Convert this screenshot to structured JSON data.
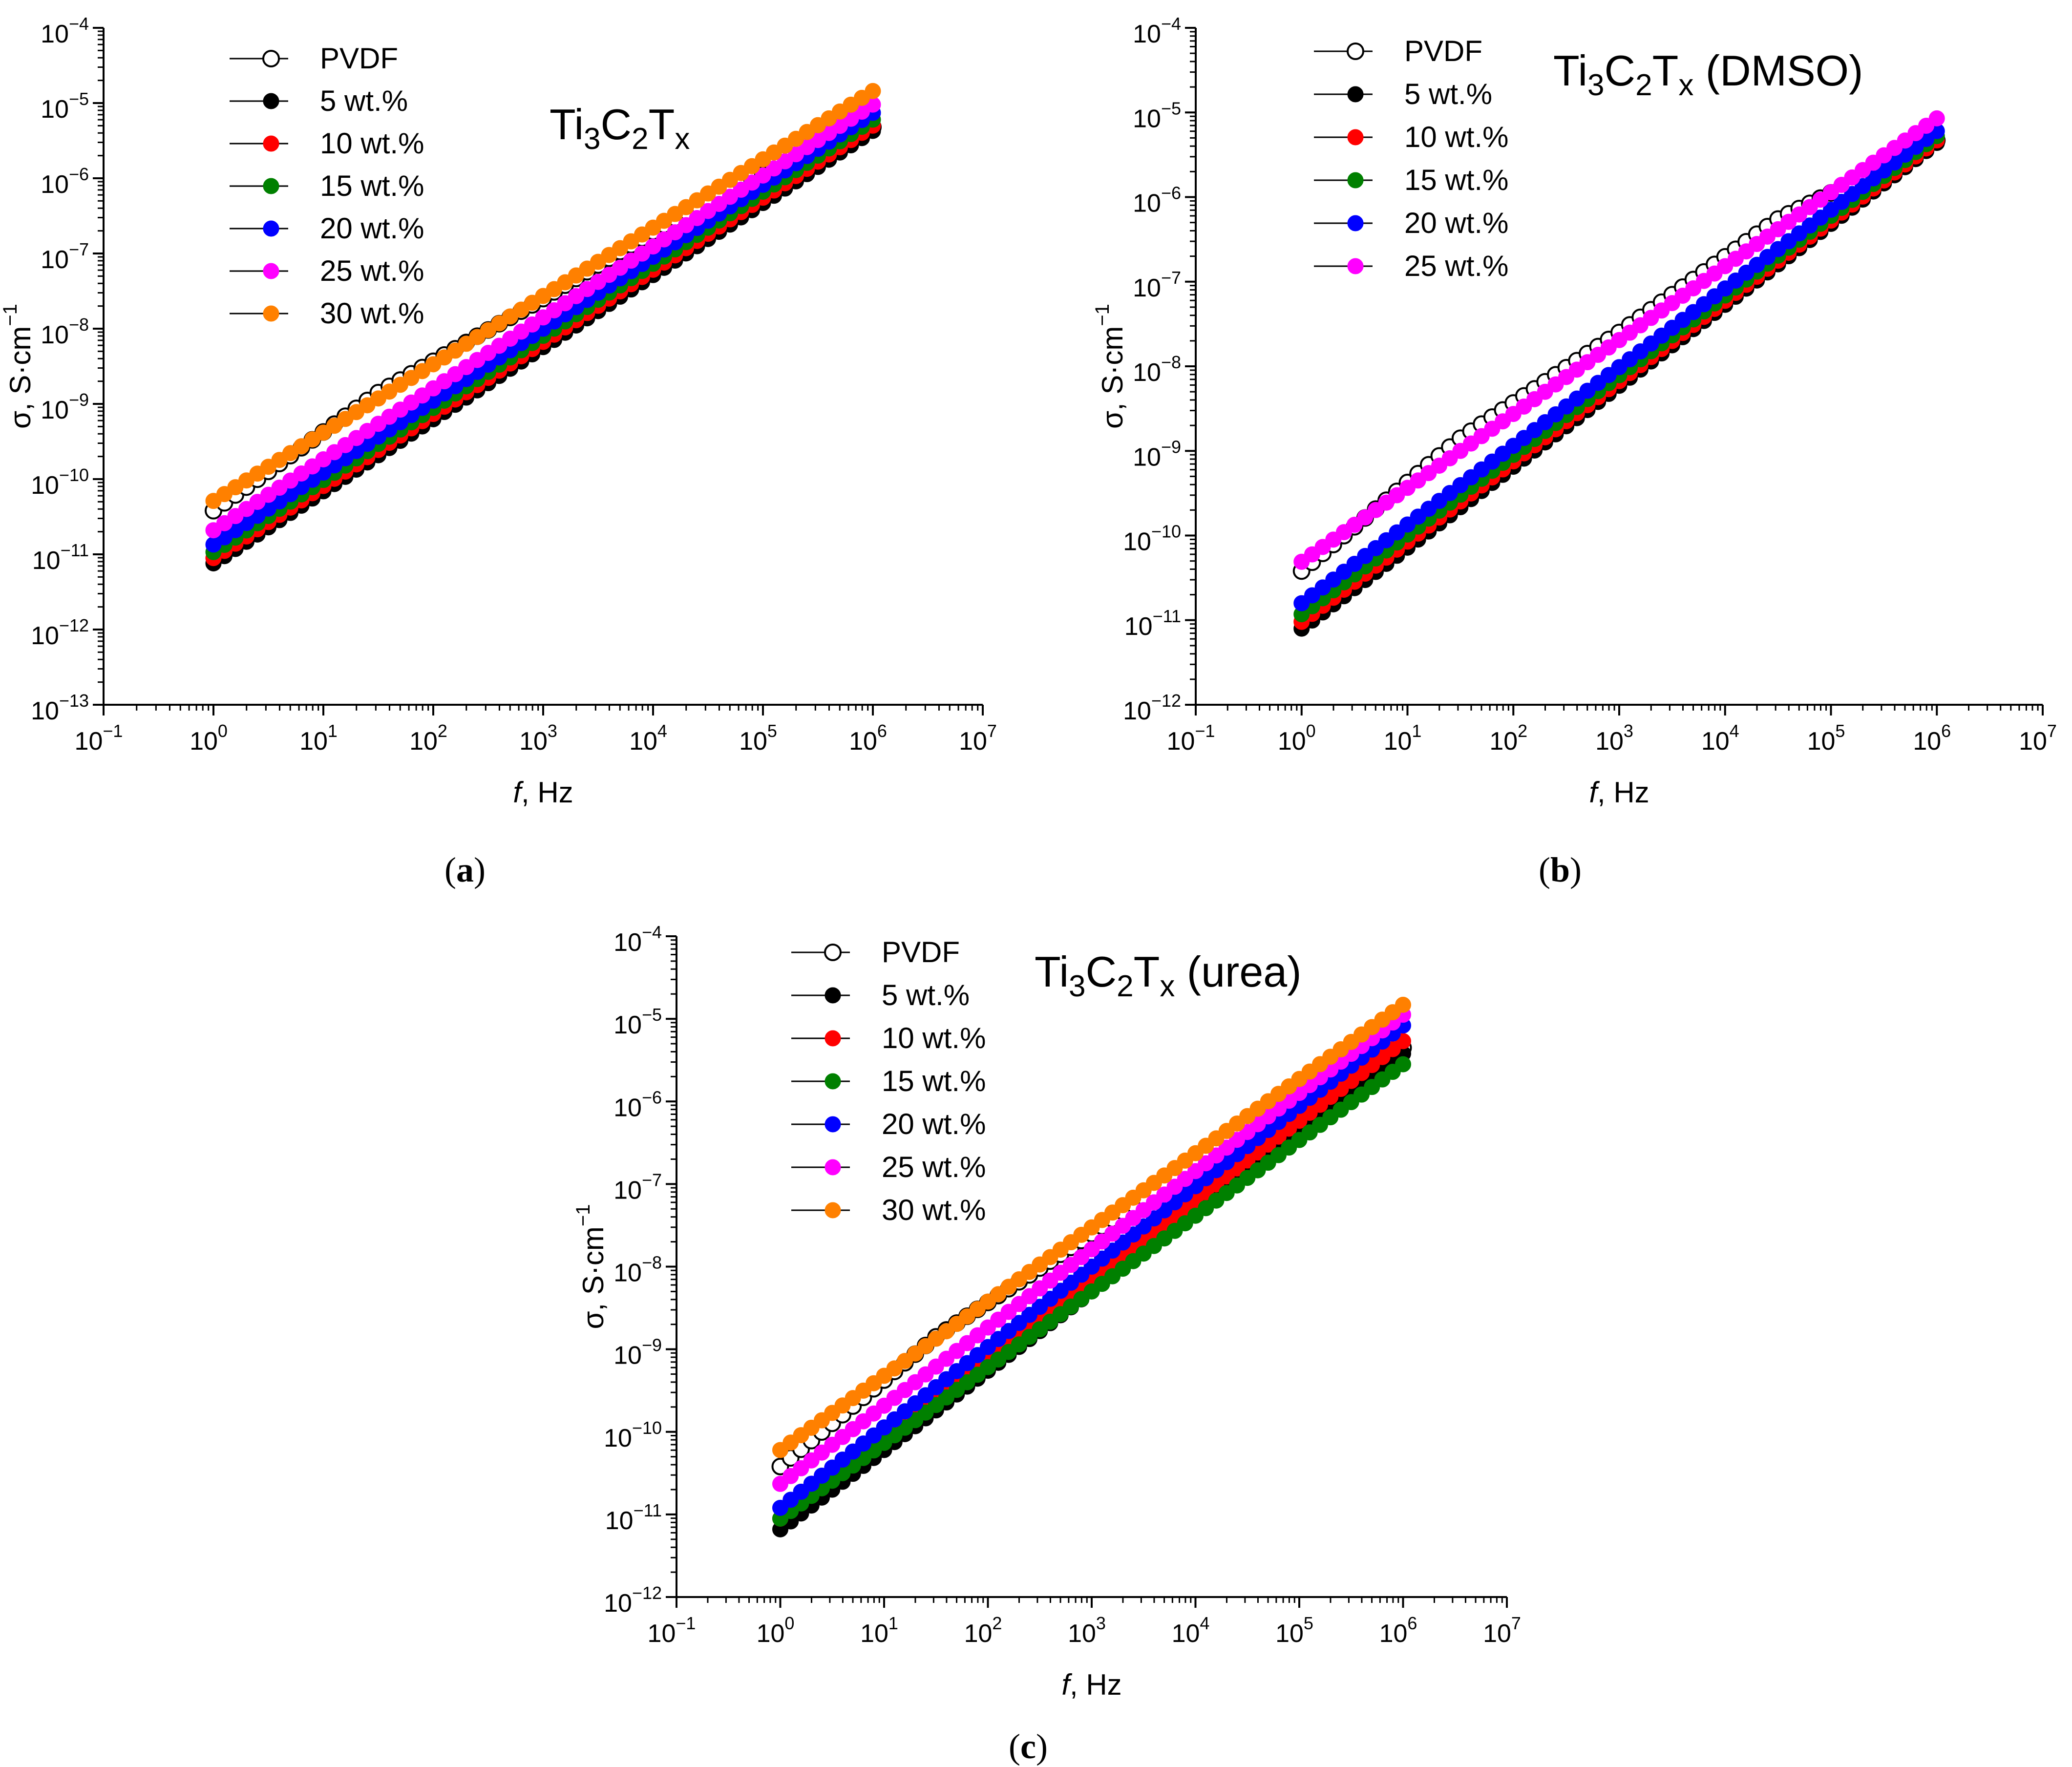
{
  "figure": {
    "panels": [
      "(a)",
      "(b)",
      "(c)"
    ]
  },
  "chart_data": [
    {
      "type": "scatter",
      "panel_label": "a",
      "title": {
        "base": "Ti",
        "s1": "3",
        "mid": "C",
        "s2": "2",
        "t": "T",
        "s3": "x",
        "suffix": ""
      },
      "xlabel": {
        "italic": "f",
        "rest": ", Hz"
      },
      "ylabel": {
        "main": "σ, S·cm",
        "sup": "−1"
      },
      "xscale": "log",
      "yscale": "log",
      "xlim_exp": [
        -1,
        7
      ],
      "ylim_exp": [
        -13,
        -4
      ],
      "x_tick_labels": [
        {
          "b": "10",
          "e": "−1"
        },
        {
          "b": "10",
          "e": "0"
        },
        {
          "b": "10",
          "e": "1"
        },
        {
          "b": "10",
          "e": "2"
        },
        {
          "b": "10",
          "e": "3"
        },
        {
          "b": "10",
          "e": "4"
        },
        {
          "b": "10",
          "e": "5"
        },
        {
          "b": "10",
          "e": "6"
        },
        {
          "b": "10",
          "e": "7"
        }
      ],
      "y_tick_labels": [
        {
          "b": "10",
          "e": "−13"
        },
        {
          "b": "10",
          "e": "−12"
        },
        {
          "b": "10",
          "e": "−11"
        },
        {
          "b": "10",
          "e": "−10"
        },
        {
          "b": "10",
          "e": "−9"
        },
        {
          "b": "10",
          "e": "−8"
        },
        {
          "b": "10",
          "e": "−7"
        },
        {
          "b": "10",
          "e": "−6"
        },
        {
          "b": "10",
          "e": "−5"
        },
        {
          "b": "10",
          "e": "−4"
        }
      ],
      "legend_position": "top-left",
      "points_per_decade": 10,
      "f_range_exp": [
        0,
        6
      ],
      "series": [
        {
          "name": "PVDF",
          "color": "#000000",
          "hollow": true,
          "log_sigma": [
            -10.42,
            -8.85,
            -7.6,
            -6.26,
            -5.32
          ]
        },
        {
          "name": "5 wt.%",
          "color": "#000000",
          "hollow": false,
          "log_sigma": [
            -11.12,
            -5.37
          ]
        },
        {
          "name": "10 wt.%",
          "color": "#ff0000",
          "hollow": false,
          "log_sigma": [
            -11.05,
            -5.3
          ]
        },
        {
          "name": "15 wt.%",
          "color": "#008000",
          "hollow": false,
          "log_sigma": [
            -10.97,
            -5.22
          ]
        },
        {
          "name": "20 wt.%",
          "color": "#0000ff",
          "hollow": false,
          "log_sigma": [
            -10.87,
            -5.13
          ]
        },
        {
          "name": "25 wt.%",
          "color": "#ff00ff",
          "hollow": false,
          "log_sigma": [
            -10.68,
            -5.02
          ]
        },
        {
          "name": "30 wt.%",
          "color": "#ff8000",
          "hollow": false,
          "log_sigma": [
            -10.29,
            -4.84
          ]
        }
      ]
    },
    {
      "type": "scatter",
      "panel_label": "b",
      "title": {
        "base": "Ti",
        "s1": "3",
        "mid": "C",
        "s2": "2",
        "t": "T",
        "s3": "x",
        "suffix": " (DMSO)"
      },
      "xlabel": {
        "italic": "f",
        "rest": ", Hz"
      },
      "ylabel": {
        "main": "σ, S·cm",
        "sup": "−1"
      },
      "xscale": "log",
      "yscale": "log",
      "xlim_exp": [
        -1,
        7
      ],
      "ylim_exp": [
        -12,
        -4
      ],
      "x_tick_labels": [
        {
          "b": "10",
          "e": "−1"
        },
        {
          "b": "10",
          "e": "0"
        },
        {
          "b": "10",
          "e": "1"
        },
        {
          "b": "10",
          "e": "2"
        },
        {
          "b": "10",
          "e": "3"
        },
        {
          "b": "10",
          "e": "4"
        },
        {
          "b": "10",
          "e": "5"
        },
        {
          "b": "10",
          "e": "6"
        },
        {
          "b": "10",
          "e": "7"
        }
      ],
      "y_tick_labels": [
        {
          "b": "10",
          "e": "−12"
        },
        {
          "b": "10",
          "e": "−11"
        },
        {
          "b": "10",
          "e": "−10"
        },
        {
          "b": "10",
          "e": "−9"
        },
        {
          "b": "10",
          "e": "−8"
        },
        {
          "b": "10",
          "e": "−7"
        },
        {
          "b": "10",
          "e": "−6"
        },
        {
          "b": "10",
          "e": "−5"
        },
        {
          "b": "10",
          "e": "−4"
        }
      ],
      "legend_position": "top-left",
      "points_per_decade": 10,
      "f_range_exp": [
        0,
        6
      ],
      "series": [
        {
          "name": "PVDF",
          "color": "#000000",
          "hollow": true,
          "log_sigma": [
            -10.42,
            -8.85,
            -7.6,
            -6.26,
            -5.33
          ]
        },
        {
          "name": "5 wt.%",
          "color": "#000000",
          "hollow": false,
          "log_sigma": [
            -11.1,
            -5.36
          ]
        },
        {
          "name": "10 wt.%",
          "color": "#ff0000",
          "hollow": false,
          "log_sigma": [
            -11.02,
            -5.33
          ]
        },
        {
          "name": "15 wt.%",
          "color": "#008000",
          "hollow": false,
          "log_sigma": [
            -10.93,
            -5.28
          ]
        },
        {
          "name": "20 wt.%",
          "color": "#0000ff",
          "hollow": false,
          "log_sigma": [
            -10.8,
            -5.22
          ]
        },
        {
          "name": "25 wt.%",
          "color": "#ff00ff",
          "hollow": false,
          "log_sigma": [
            -10.31,
            -5.07
          ]
        }
      ]
    },
    {
      "type": "scatter",
      "panel_label": "c",
      "title": {
        "base": "Ti",
        "s1": "3",
        "mid": "C",
        "s2": "2",
        "t": "T",
        "s3": "x",
        "suffix": " (urea)"
      },
      "xlabel": {
        "italic": "f",
        "rest": ", Hz"
      },
      "ylabel": {
        "main": "σ, S·cm",
        "sup": "−1"
      },
      "xscale": "log",
      "yscale": "log",
      "xlim_exp": [
        -1,
        7
      ],
      "ylim_exp": [
        -12,
        -4
      ],
      "x_tick_labels": [
        {
          "b": "10",
          "e": "−1"
        },
        {
          "b": "10",
          "e": "0"
        },
        {
          "b": "10",
          "e": "1"
        },
        {
          "b": "10",
          "e": "2"
        },
        {
          "b": "10",
          "e": "3"
        },
        {
          "b": "10",
          "e": "4"
        },
        {
          "b": "10",
          "e": "5"
        },
        {
          "b": "10",
          "e": "6"
        },
        {
          "b": "10",
          "e": "7"
        }
      ],
      "y_tick_labels": [
        {
          "b": "10",
          "e": "−12"
        },
        {
          "b": "10",
          "e": "−11"
        },
        {
          "b": "10",
          "e": "−10"
        },
        {
          "b": "10",
          "e": "−9"
        },
        {
          "b": "10",
          "e": "−8"
        },
        {
          "b": "10",
          "e": "−7"
        },
        {
          "b": "10",
          "e": "−6"
        },
        {
          "b": "10",
          "e": "−5"
        },
        {
          "b": "10",
          "e": "−4"
        }
      ],
      "legend_position": "top-left",
      "points_per_decade": 10,
      "f_range_exp": [
        0,
        6
      ],
      "series": [
        {
          "name": "PVDF",
          "color": "#000000",
          "hollow": true,
          "log_sigma": [
            -10.42,
            -8.85,
            -7.6,
            -6.26,
            -5.35
          ]
        },
        {
          "name": "5 wt.%",
          "color": "#000000",
          "hollow": false,
          "log_sigma": [
            -11.18,
            -5.42
          ]
        },
        {
          "name": "10 wt.%",
          "color": "#ff0000",
          "hollow": false,
          "log_sigma": [
            -11.05,
            -5.27
          ]
        },
        {
          "name": "15 wt.%",
          "color": "#008000",
          "hollow": false,
          "log_sigma": [
            -11.05,
            -5.55
          ]
        },
        {
          "name": "20 wt.%",
          "color": "#0000ff",
          "hollow": false,
          "log_sigma": [
            -10.92,
            -5.08
          ]
        },
        {
          "name": "25 wt.%",
          "color": "#ff00ff",
          "hollow": false,
          "log_sigma": [
            -10.63,
            -4.95
          ]
        },
        {
          "name": "30 wt.%",
          "color": "#ff8000",
          "hollow": false,
          "log_sigma": [
            -10.22,
            -4.83
          ]
        }
      ]
    }
  ]
}
